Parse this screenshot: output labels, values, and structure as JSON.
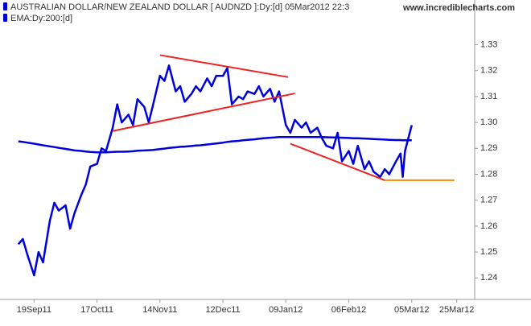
{
  "chart_data": {
    "type": "line",
    "watermark": "www.incrediblecharts.com",
    "x": [
      "2011-09-12",
      "2011-09-14",
      "2011-09-16",
      "2011-09-19",
      "2011-09-21",
      "2011-09-23",
      "2011-09-26",
      "2011-09-28",
      "2011-09-30",
      "2011-10-03",
      "2011-10-05",
      "2011-10-07",
      "2011-10-10",
      "2011-10-12",
      "2011-10-14",
      "2011-10-17",
      "2011-10-19",
      "2011-10-21",
      "2011-10-24",
      "2011-10-26",
      "2011-10-28",
      "2011-10-31",
      "2011-11-02",
      "2011-11-04",
      "2011-11-07",
      "2011-11-09",
      "2011-11-11",
      "2011-11-14",
      "2011-11-16",
      "2011-11-18",
      "2011-11-21",
      "2011-11-23",
      "2011-11-25",
      "2011-11-28",
      "2011-11-30",
      "2011-12-02",
      "2011-12-05",
      "2011-12-07",
      "2011-12-09",
      "2011-12-12",
      "2011-12-14",
      "2011-12-16",
      "2011-12-19",
      "2011-12-21",
      "2011-12-23",
      "2011-12-26",
      "2011-12-28",
      "2011-12-30",
      "2012-01-02",
      "2012-01-04",
      "2012-01-06",
      "2012-01-09",
      "2012-01-11",
      "2012-01-13",
      "2012-01-16",
      "2012-01-18",
      "2012-01-20",
      "2012-01-23",
      "2012-01-25",
      "2012-01-27",
      "2012-01-30",
      "2012-02-01",
      "2012-02-03",
      "2012-02-06",
      "2012-02-08",
      "2012-02-10",
      "2012-02-13",
      "2012-02-15",
      "2012-02-17",
      "2012-02-20",
      "2012-02-22",
      "2012-02-24",
      "2012-02-27",
      "2012-02-29",
      "2012-03-01",
      "2012-03-02",
      "2012-03-05"
    ],
    "series": [
      {
        "name": "AUSTRALIAN DOLLAR/NEW ZEALAND DOLLAR [ AUDNZD ]:Dy:[d]  05Mar2012 22:3",
        "color": "#0000dd",
        "values": [
          1.253,
          1.255,
          1.249,
          1.241,
          1.25,
          1.246,
          1.262,
          1.269,
          1.266,
          1.268,
          1.259,
          1.265,
          1.272,
          1.276,
          1.283,
          1.284,
          1.29,
          1.289,
          1.298,
          1.307,
          1.3,
          1.303,
          1.299,
          1.309,
          1.306,
          1.3,
          1.307,
          1.318,
          1.316,
          1.322,
          1.312,
          1.314,
          1.308,
          1.311,
          1.314,
          1.312,
          1.317,
          1.314,
          1.318,
          1.318,
          1.321,
          1.307,
          1.31,
          1.309,
          1.312,
          1.311,
          1.314,
          1.31,
          1.313,
          1.308,
          1.312,
          1.299,
          1.296,
          1.301,
          1.298,
          1.3,
          1.296,
          1.298,
          1.294,
          1.291,
          1.29,
          1.296,
          1.285,
          1.289,
          1.284,
          1.291,
          1.282,
          1.285,
          1.281,
          1.279,
          1.282,
          1.28,
          1.285,
          1.288,
          1.279,
          1.289,
          1.299
        ]
      },
      {
        "name": "EMA:Dy:200:[d]",
        "color": "#0000dd",
        "values": [
          1.2927,
          1.2925,
          1.2922,
          1.2918,
          1.2915,
          1.2912,
          1.2908,
          1.2905,
          1.2902,
          1.2898,
          1.2895,
          1.2892,
          1.289,
          1.2888,
          1.2886,
          1.2885,
          1.2885,
          1.2885,
          1.2886,
          1.2887,
          1.2887,
          1.2888,
          1.2889,
          1.2891,
          1.2892,
          1.2893,
          1.2894,
          1.2897,
          1.2899,
          1.2902,
          1.2904,
          1.2906,
          1.2907,
          1.2909,
          1.2911,
          1.2912,
          1.2915,
          1.2917,
          1.2919,
          1.2922,
          1.2925,
          1.2927,
          1.2929,
          1.2931,
          1.2933,
          1.2935,
          1.2937,
          1.2939,
          1.2941,
          1.2942,
          1.2944,
          1.2944,
          1.2944,
          1.2944,
          1.2944,
          1.2944,
          1.2944,
          1.2944,
          1.2944,
          1.2943,
          1.2942,
          1.2942,
          1.2941,
          1.294,
          1.2939,
          1.2939,
          1.2938,
          1.2937,
          1.2936,
          1.2935,
          1.2934,
          1.2933,
          1.2932,
          1.2932,
          1.2931,
          1.2931,
          1.2931
        ]
      }
    ],
    "trendlines": [
      {
        "color": "#ee2222",
        "x": [
          "2011-11-14",
          "2012-01-10"
        ],
        "values": [
          1.326,
          1.3175
        ]
      },
      {
        "color": "#ee2222",
        "x": [
          "2011-10-24",
          "2012-01-13"
        ],
        "values": [
          1.2967,
          1.3112
        ]
      },
      {
        "color": "#ee2222",
        "x": [
          "2012-01-11",
          "2012-02-22"
        ],
        "values": [
          1.2918,
          1.2777
        ]
      },
      {
        "color": "#ff8800",
        "x": [
          "2012-02-22",
          "2012-03-24"
        ],
        "values": [
          1.2777,
          1.2777
        ]
      }
    ],
    "xlim": [
      "2011-09-11",
      "2012-04-02"
    ],
    "xticks": [
      {
        "value": "2011-09-19",
        "label": "19Sep11"
      },
      {
        "value": "2011-10-17",
        "label": "17Oct11"
      },
      {
        "value": "2011-11-14",
        "label": "14Nov11"
      },
      {
        "value": "2011-12-12",
        "label": "12Dec11"
      },
      {
        "value": "2012-01-09",
        "label": "09Jan12"
      },
      {
        "value": "2012-02-06",
        "label": "06Feb12"
      },
      {
        "value": "2012-03-05",
        "label": "05Mar12"
      },
      {
        "value": "2012-03-25",
        "label": "25Mar12"
      }
    ],
    "ylim": [
      1.2317,
      1.3426
    ],
    "yticks": [
      1.24,
      1.25,
      1.26,
      1.27,
      1.28,
      1.29,
      {
        "value": 1.3,
        "label": "1.30"
      },
      1.31,
      1.32,
      1.33
    ]
  }
}
